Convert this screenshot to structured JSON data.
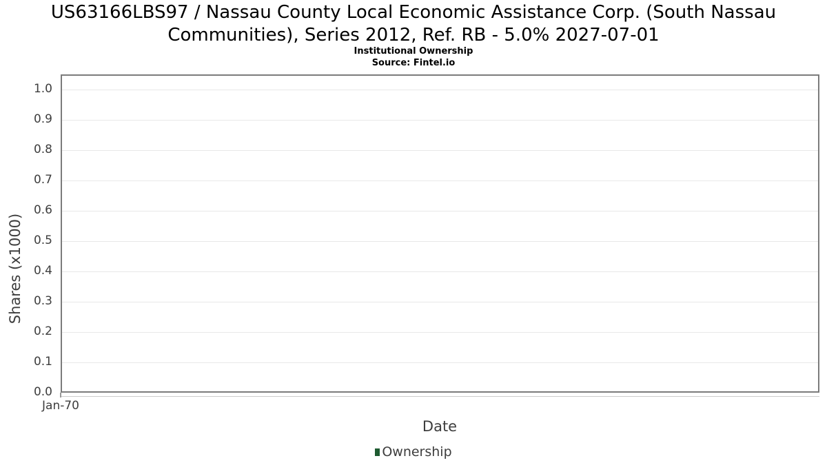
{
  "chart_data": {
    "type": "line",
    "title": "US63166LBS97 / Nassau County Local Economic Assistance Corp. (South Nassau Communities), Series 2012, Ref. RB - 5.0% 2027-07-01",
    "subtitle": "Institutional Ownership",
    "source": "Source: Fintel.io",
    "xlabel": "Date",
    "ylabel": "Shares (x1000)",
    "x_tick_labels": [
      "Jan-70"
    ],
    "y_tick_labels": [
      "0.0",
      "0.1",
      "0.2",
      "0.3",
      "0.4",
      "0.5",
      "0.6",
      "0.7",
      "0.8",
      "0.9",
      "1.0"
    ],
    "ylim": [
      0.0,
      1.05
    ],
    "grid": true,
    "legend_position": "bottom",
    "series": [
      {
        "name": "Ownership",
        "x": [],
        "values": []
      }
    ]
  },
  "colors": {
    "background": "#ffffff",
    "title_text": "#000000",
    "axis_text": "#3d3d3d",
    "grid_line": "#e8e8e8",
    "plot_border": "#7b7b7b",
    "legend_marker": "#1e5b31"
  }
}
